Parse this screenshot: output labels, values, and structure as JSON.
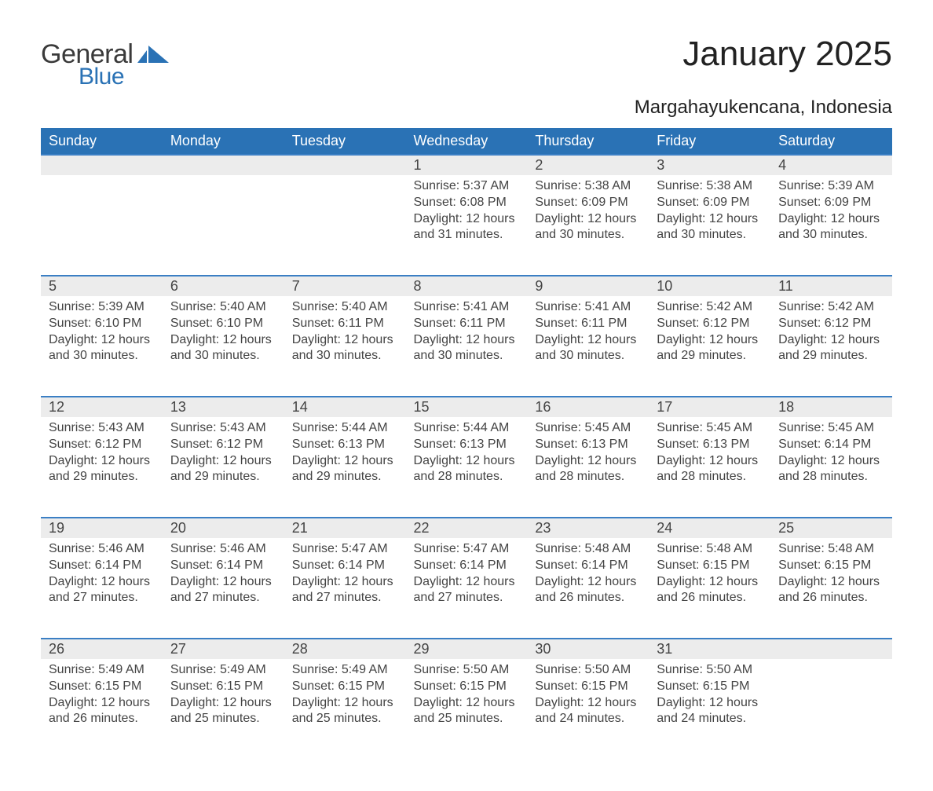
{
  "logo": {
    "text1": "General",
    "text2": "Blue",
    "flag_color": "#2a72b5",
    "text1_color": "#3a3a3a"
  },
  "title": "January 2025",
  "subtitle": "Margahayukencana, Indonesia",
  "colors": {
    "header_bg": "#2a72b5",
    "header_text": "#ffffff",
    "row_sep": "#3b7fc4",
    "daynum_bg": "#ececec",
    "body_text": "#444444",
    "page_bg": "#ffffff"
  },
  "day_headers": [
    "Sunday",
    "Monday",
    "Tuesday",
    "Wednesday",
    "Thursday",
    "Friday",
    "Saturday"
  ],
  "labels": {
    "sunrise": "Sunrise:",
    "sunset": "Sunset:",
    "daylight": "Daylight:"
  },
  "weeks": [
    [
      null,
      null,
      null,
      {
        "n": "1",
        "sunrise": "5:37 AM",
        "sunset": "6:08 PM",
        "daylight": "12 hours and 31 minutes."
      },
      {
        "n": "2",
        "sunrise": "5:38 AM",
        "sunset": "6:09 PM",
        "daylight": "12 hours and 30 minutes."
      },
      {
        "n": "3",
        "sunrise": "5:38 AM",
        "sunset": "6:09 PM",
        "daylight": "12 hours and 30 minutes."
      },
      {
        "n": "4",
        "sunrise": "5:39 AM",
        "sunset": "6:09 PM",
        "daylight": "12 hours and 30 minutes."
      }
    ],
    [
      {
        "n": "5",
        "sunrise": "5:39 AM",
        "sunset": "6:10 PM",
        "daylight": "12 hours and 30 minutes."
      },
      {
        "n": "6",
        "sunrise": "5:40 AM",
        "sunset": "6:10 PM",
        "daylight": "12 hours and 30 minutes."
      },
      {
        "n": "7",
        "sunrise": "5:40 AM",
        "sunset": "6:11 PM",
        "daylight": "12 hours and 30 minutes."
      },
      {
        "n": "8",
        "sunrise": "5:41 AM",
        "sunset": "6:11 PM",
        "daylight": "12 hours and 30 minutes."
      },
      {
        "n": "9",
        "sunrise": "5:41 AM",
        "sunset": "6:11 PM",
        "daylight": "12 hours and 30 minutes."
      },
      {
        "n": "10",
        "sunrise": "5:42 AM",
        "sunset": "6:12 PM",
        "daylight": "12 hours and 29 minutes."
      },
      {
        "n": "11",
        "sunrise": "5:42 AM",
        "sunset": "6:12 PM",
        "daylight": "12 hours and 29 minutes."
      }
    ],
    [
      {
        "n": "12",
        "sunrise": "5:43 AM",
        "sunset": "6:12 PM",
        "daylight": "12 hours and 29 minutes."
      },
      {
        "n": "13",
        "sunrise": "5:43 AM",
        "sunset": "6:12 PM",
        "daylight": "12 hours and 29 minutes."
      },
      {
        "n": "14",
        "sunrise": "5:44 AM",
        "sunset": "6:13 PM",
        "daylight": "12 hours and 29 minutes."
      },
      {
        "n": "15",
        "sunrise": "5:44 AM",
        "sunset": "6:13 PM",
        "daylight": "12 hours and 28 minutes."
      },
      {
        "n": "16",
        "sunrise": "5:45 AM",
        "sunset": "6:13 PM",
        "daylight": "12 hours and 28 minutes."
      },
      {
        "n": "17",
        "sunrise": "5:45 AM",
        "sunset": "6:13 PM",
        "daylight": "12 hours and 28 minutes."
      },
      {
        "n": "18",
        "sunrise": "5:45 AM",
        "sunset": "6:14 PM",
        "daylight": "12 hours and 28 minutes."
      }
    ],
    [
      {
        "n": "19",
        "sunrise": "5:46 AM",
        "sunset": "6:14 PM",
        "daylight": "12 hours and 27 minutes."
      },
      {
        "n": "20",
        "sunrise": "5:46 AM",
        "sunset": "6:14 PM",
        "daylight": "12 hours and 27 minutes."
      },
      {
        "n": "21",
        "sunrise": "5:47 AM",
        "sunset": "6:14 PM",
        "daylight": "12 hours and 27 minutes."
      },
      {
        "n": "22",
        "sunrise": "5:47 AM",
        "sunset": "6:14 PM",
        "daylight": "12 hours and 27 minutes."
      },
      {
        "n": "23",
        "sunrise": "5:48 AM",
        "sunset": "6:14 PM",
        "daylight": "12 hours and 26 minutes."
      },
      {
        "n": "24",
        "sunrise": "5:48 AM",
        "sunset": "6:15 PM",
        "daylight": "12 hours and 26 minutes."
      },
      {
        "n": "25",
        "sunrise": "5:48 AM",
        "sunset": "6:15 PM",
        "daylight": "12 hours and 26 minutes."
      }
    ],
    [
      {
        "n": "26",
        "sunrise": "5:49 AM",
        "sunset": "6:15 PM",
        "daylight": "12 hours and 26 minutes."
      },
      {
        "n": "27",
        "sunrise": "5:49 AM",
        "sunset": "6:15 PM",
        "daylight": "12 hours and 25 minutes."
      },
      {
        "n": "28",
        "sunrise": "5:49 AM",
        "sunset": "6:15 PM",
        "daylight": "12 hours and 25 minutes."
      },
      {
        "n": "29",
        "sunrise": "5:50 AM",
        "sunset": "6:15 PM",
        "daylight": "12 hours and 25 minutes."
      },
      {
        "n": "30",
        "sunrise": "5:50 AM",
        "sunset": "6:15 PM",
        "daylight": "12 hours and 24 minutes."
      },
      {
        "n": "31",
        "sunrise": "5:50 AM",
        "sunset": "6:15 PM",
        "daylight": "12 hours and 24 minutes."
      },
      null
    ]
  ]
}
